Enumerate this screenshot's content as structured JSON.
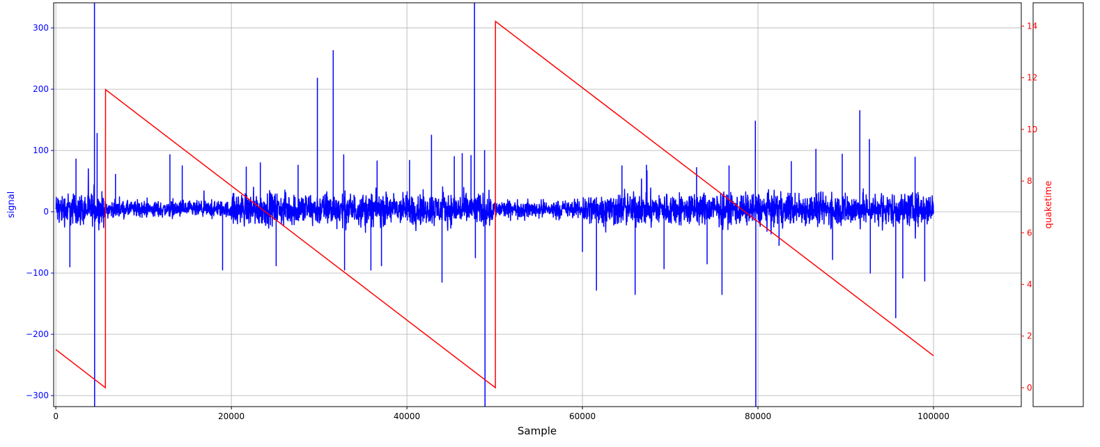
{
  "chart_data": {
    "type": "line",
    "title": "",
    "xlabel": "Sample",
    "ylabel_left": "signal",
    "ylabel_right": "quaketime",
    "xlim": [
      -250,
      110000
    ],
    "ylim_left": [
      -318,
      341
    ],
    "ylim_right": [
      -0.73,
      14.9
    ],
    "grid": true,
    "x_ticks": [
      "0",
      "20000",
      "40000",
      "60000",
      "80000",
      "100000"
    ],
    "x_tick_values": [
      0,
      20000,
      40000,
      60000,
      80000,
      100000
    ],
    "y_left_ticks": [
      "300",
      "200",
      "100",
      "0",
      "−100",
      "−200",
      "−300"
    ],
    "y_left_tick_values": [
      300,
      200,
      100,
      0,
      -100,
      -200,
      -300
    ],
    "y_right_ticks": [
      "14",
      "12",
      "10",
      "8",
      "6",
      "4",
      "2",
      "0"
    ],
    "y_right_tick_values": [
      14,
      12,
      10,
      8,
      6,
      4,
      2,
      0
    ],
    "colors": {
      "signal": "#0000ff",
      "quaketime": "#ff0000",
      "grid": "#b0b0b0"
    },
    "series": [
      {
        "key": "signal",
        "axis": "left",
        "x_range": [
          0,
          100000
        ],
        "baseline": 4,
        "noise_amplitude": [
          [
            0,
            5500,
            28
          ],
          [
            5500,
            20000,
            14
          ],
          [
            20000,
            50000,
            28
          ],
          [
            50000,
            60000,
            15
          ],
          [
            60000,
            100000,
            28
          ]
        ],
        "spikes": [
          [
            1600,
            -90
          ],
          [
            2300,
            86
          ],
          [
            4400,
            400
          ],
          [
            4420,
            -400
          ],
          [
            4700,
            128
          ],
          [
            6800,
            61
          ],
          [
            13000,
            93
          ],
          [
            14400,
            75
          ],
          [
            19000,
            -95
          ],
          [
            21700,
            73
          ],
          [
            23300,
            80
          ],
          [
            25100,
            -88
          ],
          [
            27600,
            76
          ],
          [
            29800,
            218
          ],
          [
            31600,
            263
          ],
          [
            32800,
            93
          ],
          [
            32900,
            -95
          ],
          [
            35900,
            -95
          ],
          [
            36600,
            83
          ],
          [
            37100,
            -88
          ],
          [
            40300,
            84
          ],
          [
            42800,
            125
          ],
          [
            44000,
            -115
          ],
          [
            45400,
            90
          ],
          [
            46300,
            95
          ],
          [
            47300,
            92
          ],
          [
            47700,
            400
          ],
          [
            47800,
            -75
          ],
          [
            48850,
            100
          ],
          [
            48900,
            -400
          ],
          [
            60000,
            -65
          ],
          [
            61600,
            -128
          ],
          [
            64500,
            75
          ],
          [
            66000,
            -135
          ],
          [
            67300,
            76
          ],
          [
            69300,
            -93
          ],
          [
            73000,
            72
          ],
          [
            74200,
            -85
          ],
          [
            75900,
            -135
          ],
          [
            76700,
            75
          ],
          [
            79700,
            148
          ],
          [
            79750,
            -400
          ],
          [
            82400,
            -55
          ],
          [
            83800,
            82
          ],
          [
            86600,
            102
          ],
          [
            88500,
            -78
          ],
          [
            89600,
            94
          ],
          [
            91600,
            165
          ],
          [
            92700,
            118
          ],
          [
            92800,
            -100
          ],
          [
            95700,
            -173
          ],
          [
            96500,
            -108
          ],
          [
            97900,
            89
          ],
          [
            99000,
            -113
          ]
        ]
      },
      {
        "key": "quaketime",
        "axis": "right",
        "points": [
          [
            0,
            1.48
          ],
          [
            5650,
            0.0
          ],
          [
            5660,
            11.54
          ],
          [
            50080,
            0.0
          ],
          [
            50090,
            14.18
          ],
          [
            100000,
            1.24
          ]
        ]
      }
    ]
  }
}
